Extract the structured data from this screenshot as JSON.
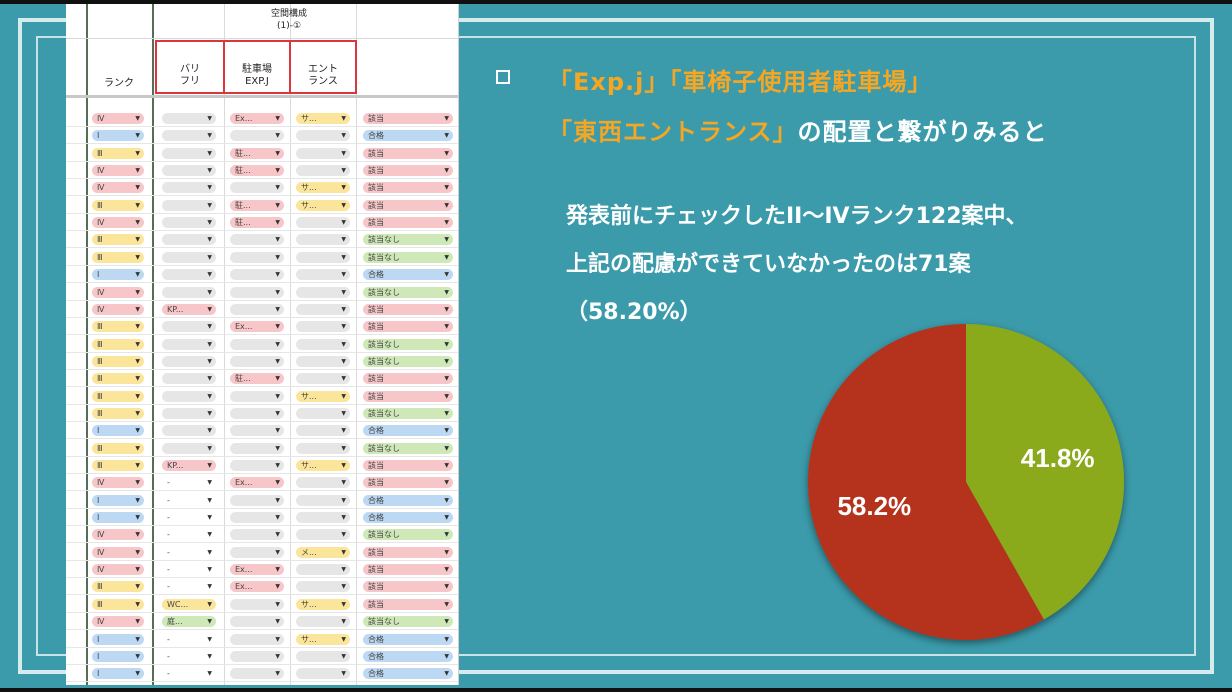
{
  "sheet": {
    "group_header_line1": "空間構成",
    "group_header_line2": "(1)-①",
    "col_rank": "ランク",
    "col_barrier_line1": "バリ",
    "col_barrier_line2": "フリ",
    "col_parking_line1": "駐車場",
    "col_parking_line2": "EXP.J",
    "col_entrance_line1": "エント",
    "col_entrance_line2": "ランス",
    "rows": [
      {
        "rank": "Ⅳ",
        "rc": "red",
        "b": "",
        "bc": "gry",
        "p": "Ex...",
        "pc": "red",
        "e": "サ...",
        "ec": "yel",
        "r": "該当",
        "resc": "red"
      },
      {
        "rank": "Ⅰ",
        "rc": "blue",
        "b": "",
        "bc": "gry",
        "p": "",
        "pc": "gry",
        "e": "",
        "ec": "gry",
        "r": "合格",
        "resc": "blue"
      },
      {
        "rank": "Ⅲ",
        "rc": "yel",
        "b": "",
        "bc": "gry",
        "p": "駐...",
        "pc": "red",
        "e": "",
        "ec": "gry",
        "r": "該当",
        "resc": "red"
      },
      {
        "rank": "Ⅳ",
        "rc": "red",
        "b": "",
        "bc": "gry",
        "p": "駐...",
        "pc": "red",
        "e": "",
        "ec": "gry",
        "r": "該当",
        "resc": "red"
      },
      {
        "rank": "Ⅳ",
        "rc": "red",
        "b": "",
        "bc": "gry",
        "p": "",
        "pc": "gry",
        "e": "サ...",
        "ec": "yel",
        "r": "該当",
        "resc": "red"
      },
      {
        "rank": "Ⅲ",
        "rc": "yel",
        "b": "",
        "bc": "gry",
        "p": "駐...",
        "pc": "red",
        "e": "サ...",
        "ec": "yel",
        "r": "該当",
        "resc": "red"
      },
      {
        "rank": "Ⅳ",
        "rc": "red",
        "b": "",
        "bc": "gry",
        "p": "駐...",
        "pc": "red",
        "e": "",
        "ec": "gry",
        "r": "該当",
        "resc": "red"
      },
      {
        "rank": "Ⅲ",
        "rc": "yel",
        "b": "",
        "bc": "gry",
        "p": "",
        "pc": "gry",
        "e": "",
        "ec": "gry",
        "r": "該当なし",
        "resc": "grn"
      },
      {
        "rank": "Ⅲ",
        "rc": "yel",
        "b": "",
        "bc": "gry",
        "p": "",
        "pc": "gry",
        "e": "",
        "ec": "gry",
        "r": "該当なし",
        "resc": "grn"
      },
      {
        "rank": "Ⅰ",
        "rc": "blue",
        "b": "",
        "bc": "gry",
        "p": "",
        "pc": "gry",
        "e": "",
        "ec": "gry",
        "r": "合格",
        "resc": "blue"
      },
      {
        "rank": "Ⅳ",
        "rc": "red",
        "b": "",
        "bc": "gry",
        "p": "",
        "pc": "gry",
        "e": "",
        "ec": "gry",
        "r": "該当なし",
        "resc": "grn"
      },
      {
        "rank": "Ⅳ",
        "rc": "red",
        "b": "KP...",
        "bc": "red",
        "p": "",
        "pc": "gry",
        "e": "",
        "ec": "gry",
        "r": "該当",
        "resc": "red"
      },
      {
        "rank": "Ⅲ",
        "rc": "yel",
        "b": "",
        "bc": "gry",
        "p": "Ex...",
        "pc": "red",
        "e": "",
        "ec": "gry",
        "r": "該当",
        "resc": "red"
      },
      {
        "rank": "Ⅲ",
        "rc": "yel",
        "b": "",
        "bc": "gry",
        "p": "",
        "pc": "gry",
        "e": "",
        "ec": "gry",
        "r": "該当なし",
        "resc": "grn"
      },
      {
        "rank": "Ⅲ",
        "rc": "yel",
        "b": "",
        "bc": "gry",
        "p": "",
        "pc": "gry",
        "e": "",
        "ec": "gry",
        "r": "該当なし",
        "resc": "grn"
      },
      {
        "rank": "Ⅲ",
        "rc": "yel",
        "b": "",
        "bc": "gry",
        "p": "駐...",
        "pc": "red",
        "e": "",
        "ec": "gry",
        "r": "該当",
        "resc": "red"
      },
      {
        "rank": "Ⅲ",
        "rc": "yel",
        "b": "",
        "bc": "gry",
        "p": "",
        "pc": "gry",
        "e": "サ...",
        "ec": "yel",
        "r": "該当",
        "resc": "red"
      },
      {
        "rank": "Ⅲ",
        "rc": "yel",
        "b": "",
        "bc": "gry",
        "p": "",
        "pc": "gry",
        "e": "",
        "ec": "gry",
        "r": "該当なし",
        "resc": "grn"
      },
      {
        "rank": "Ⅰ",
        "rc": "blue",
        "b": "",
        "bc": "gry",
        "p": "",
        "pc": "gry",
        "e": "",
        "ec": "gry",
        "r": "合格",
        "resc": "blue"
      },
      {
        "rank": "Ⅲ",
        "rc": "yel",
        "b": "",
        "bc": "gry",
        "p": "",
        "pc": "gry",
        "e": "",
        "ec": "gry",
        "r": "該当なし",
        "resc": "grn"
      },
      {
        "rank": "Ⅲ",
        "rc": "yel",
        "b": "KP...",
        "bc": "red",
        "p": "",
        "pc": "gry",
        "e": "サ...",
        "ec": "yel",
        "r": "該当",
        "resc": "red"
      },
      {
        "rank": "Ⅳ",
        "rc": "red",
        "b": "-",
        "bc": "none",
        "p": "Ex...",
        "pc": "red",
        "e": "",
        "ec": "gry",
        "r": "該当",
        "resc": "red"
      },
      {
        "rank": "Ⅰ",
        "rc": "blue",
        "b": "-",
        "bc": "none",
        "p": "",
        "pc": "gry",
        "e": "",
        "ec": "gry",
        "r": "合格",
        "resc": "blue"
      },
      {
        "rank": "Ⅰ",
        "rc": "blue",
        "b": "-",
        "bc": "none",
        "p": "",
        "pc": "gry",
        "e": "",
        "ec": "gry",
        "r": "合格",
        "resc": "blue"
      },
      {
        "rank": "Ⅳ",
        "rc": "red",
        "b": "-",
        "bc": "none",
        "p": "",
        "pc": "gry",
        "e": "",
        "ec": "gry",
        "r": "該当なし",
        "resc": "grn"
      },
      {
        "rank": "Ⅳ",
        "rc": "red",
        "b": "-",
        "bc": "none",
        "p": "",
        "pc": "gry",
        "e": "メ...",
        "ec": "yel",
        "r": "該当",
        "resc": "red"
      },
      {
        "rank": "Ⅳ",
        "rc": "red",
        "b": "-",
        "bc": "none",
        "p": "Ex...",
        "pc": "red",
        "e": "",
        "ec": "gry",
        "r": "該当",
        "resc": "red"
      },
      {
        "rank": "Ⅲ",
        "rc": "yel",
        "b": "-",
        "bc": "none",
        "p": "Ex...",
        "pc": "red",
        "e": "",
        "ec": "gry",
        "r": "該当",
        "resc": "red"
      },
      {
        "rank": "Ⅲ",
        "rc": "yel",
        "b": "WC...",
        "bc": "yel",
        "p": "",
        "pc": "gry",
        "e": "サ...",
        "ec": "yel",
        "r": "該当",
        "resc": "red"
      },
      {
        "rank": "Ⅳ",
        "rc": "red",
        "b": "庭...",
        "bc": "grn",
        "p": "",
        "pc": "gry",
        "e": "",
        "ec": "gry",
        "r": "該当なし",
        "resc": "grn"
      },
      {
        "rank": "Ⅰ",
        "rc": "blue",
        "b": "-",
        "bc": "none",
        "p": "",
        "pc": "gry",
        "e": "サ...",
        "ec": "yel",
        "r": "合格",
        "resc": "blue"
      },
      {
        "rank": "Ⅰ",
        "rc": "blue",
        "b": "-",
        "bc": "none",
        "p": "",
        "pc": "gry",
        "e": "",
        "ec": "gry",
        "r": "合格",
        "resc": "blue"
      },
      {
        "rank": "Ⅰ",
        "rc": "blue",
        "b": "-",
        "bc": "none",
        "p": "",
        "pc": "gry",
        "e": "",
        "ec": "gry",
        "r": "合格",
        "resc": "blue"
      }
    ]
  },
  "slide": {
    "heading_line1_part1": "「Exp.j」「車椅子使用者駐車場」",
    "heading_line2_part1": "「東西エントランス」",
    "heading_line2_part2": "の配置と繋がりみると",
    "body_line1": "発表前にチェックしたII〜IVランク122案中、",
    "body_line2": "上記の配慮ができていなかったのは71案",
    "body_line3": "（58.20%）"
  },
  "chart_data": {
    "type": "pie",
    "slices": [
      {
        "label": "41.8%",
        "value": 41.8,
        "color": "#8aaa1a"
      },
      {
        "label": "58.2%",
        "value": 58.2,
        "color": "#b5301f"
      }
    ]
  }
}
